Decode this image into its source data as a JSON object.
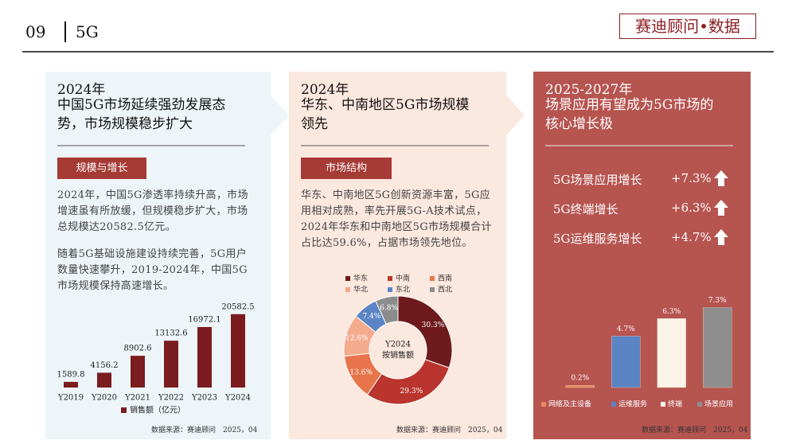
{
  "header": {
    "page_number": "09",
    "section": "5G",
    "brand": "赛迪顾问•数据"
  },
  "panels": [
    {
      "year": "2024年",
      "title": "中国5G市场延续强劲发展态势，市场规模稳步扩大",
      "tag": "规模与增长",
      "paragraphs": [
        "2024年，中国5G渗透率持续升高，市场增速虽有所放缓，但规模稳步扩大，市场总规模达20582.5亿元。",
        "随着5G基础设施建设持续完善，5G用户数量快速攀升，2019-2024年，中国5G市场规模保持高速增长。"
      ],
      "source": "数据来源：赛迪顾问　2025，04"
    },
    {
      "year": "2024年",
      "title": "华东、中南地区5G市场规模领先",
      "tag": "市场结构",
      "paragraphs": [
        "华东、中南地区5G创新资源丰富，5G应用相对成熟，率先开展5G-A技术试点，2024年华东和中南地区5G市场规模合计占比达59.6%，占据市场领先地位。"
      ],
      "source": "数据来源：赛迪顾问　2025，04"
    },
    {
      "year": "2025-2027年",
      "title": "场景应用有望成为5G市场的核心增长极",
      "growth": [
        {
          "label": "5G场景应用增长",
          "value": "+7.3%"
        },
        {
          "label": "5G终端增长",
          "value": "+6.3%"
        },
        {
          "label": "5G运维服务增长",
          "value": "+4.7%"
        }
      ],
      "source": "数据来源：赛迪顾问　2025，04"
    }
  ],
  "chart_data": [
    {
      "type": "bar",
      "categories": [
        "Y2019",
        "Y2020",
        "Y2021",
        "Y2022",
        "Y2023",
        "Y2024"
      ],
      "series": [
        {
          "name": "销售额（亿元）",
          "color": "#7b1c20",
          "values": [
            1589.8,
            4156.2,
            8902.6,
            13132.6,
            16972.1,
            20582.5
          ]
        }
      ],
      "ylim": [
        0,
        25000
      ]
    },
    {
      "type": "pie",
      "center_label": [
        "Y2024",
        "按销售额"
      ],
      "categories": [
        "华东",
        "中南",
        "西南",
        "华北",
        "东北",
        "西北"
      ],
      "values": [
        30.3,
        29.3,
        13.6,
        12.6,
        7.4,
        6.8
      ],
      "value_labels": [
        "30.3%",
        "29.3%",
        "13.6%",
        "12.6%",
        "7.4%",
        "6.8%"
      ],
      "colors": [
        "#6e1a1c",
        "#b9352d",
        "#e8744b",
        "#f4aa8c",
        "#5b84c4",
        "#8c8c8c"
      ]
    },
    {
      "type": "bar",
      "categories": [
        "网络及主设备",
        "运维服务",
        "终端",
        "场景应用"
      ],
      "values": [
        0.2,
        4.7,
        6.3,
        7.3
      ],
      "value_labels": [
        "0.2%",
        "4.7%",
        "6.3%",
        "7.3%"
      ],
      "colors": [
        "#e8895a",
        "#5b84c4",
        "#fdf4e8",
        "#8e8e8e"
      ],
      "ylim": [
        0,
        8.5
      ]
    }
  ]
}
